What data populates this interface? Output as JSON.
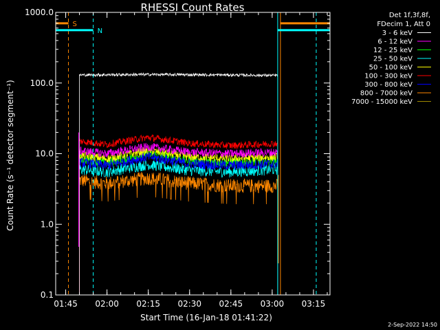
{
  "chart_data": {
    "type": "line",
    "title": "RHESSI Count Rates",
    "xlabel": "Start Time (16-Jan-18 01:41:22)",
    "ylabel": "Count Rate (s⁻¹ detector segment⁻¹)",
    "yscale": "log",
    "ylim": [
      0.1,
      1000.0
    ],
    "xlim": [
      "01:41:22",
      "03:21:00"
    ],
    "x_ticks": [
      "01:45",
      "02:00",
      "02:15",
      "02:30",
      "02:45",
      "03:00",
      "03:15"
    ],
    "y_ticks": [
      "0.1",
      "1.0",
      "10.0",
      "100.0",
      "1000.0"
    ],
    "grid": false,
    "legend_position": "top-right",
    "legend_header": [
      "Det 1f,3f,8f,",
      "FDecim 1, Att 0"
    ],
    "footer_date": "2-Sep-2022 14:50",
    "markers": [
      {
        "label": "S",
        "color": "#ff8800",
        "time": "01:46",
        "style": "dashed",
        "bar": {
          "start": "01:41:22",
          "end": "01:46",
          "level": 700
        }
      },
      {
        "label": "N",
        "color": "#00ffff",
        "time": "01:55",
        "style": "dashed",
        "bar": {
          "start": "01:41:22",
          "end": "01:55",
          "level": 560
        }
      },
      {
        "label": "",
        "color": "#ff8800",
        "time": "03:03",
        "style": "solid",
        "bar": {
          "start": "03:03",
          "end": "03:21",
          "level": 700
        }
      },
      {
        "label": "",
        "color": "#00ffff",
        "time": "03:02",
        "style": "solid",
        "bar": {
          "start": "03:02",
          "end": "03:21",
          "level": 560
        }
      },
      {
        "label": "",
        "color": "#00ffff",
        "time": "03:16",
        "style": "dashed"
      },
      {
        "label": "",
        "color": "#00ffff",
        "time": "01:41:22",
        "style": "solid"
      }
    ],
    "observation": {
      "start": "01:50",
      "end": "03:02"
    },
    "series": [
      {
        "name": "3 - 6 keV",
        "color": "#ffffff",
        "values": [
          {
            "t": "01:50",
            "v": 130
          },
          {
            "t": "02:15",
            "v": 132
          },
          {
            "t": "02:45",
            "v": 130
          },
          {
            "t": "03:02",
            "v": 128
          }
        ]
      },
      {
        "name": "6 - 12 keV",
        "color": "#ff00ff",
        "values": [
          {
            "t": "01:50",
            "v": 11
          },
          {
            "t": "02:00",
            "v": 10
          },
          {
            "t": "02:15",
            "v": 12.5
          },
          {
            "t": "02:30",
            "v": 10.5
          },
          {
            "t": "02:45",
            "v": 10
          },
          {
            "t": "03:02",
            "v": 10.5
          }
        ]
      },
      {
        "name": "12 - 25 keV",
        "color": "#00ff00",
        "values": [
          {
            "t": "01:50",
            "v": 8.5
          },
          {
            "t": "02:00",
            "v": 7.5
          },
          {
            "t": "02:15",
            "v": 10
          },
          {
            "t": "02:30",
            "v": 8
          },
          {
            "t": "02:45",
            "v": 7.5
          },
          {
            "t": "03:02",
            "v": 8
          }
        ]
      },
      {
        "name": "25 - 50 keV",
        "color": "#00ffff",
        "values": [
          {
            "t": "01:50",
            "v": 6
          },
          {
            "t": "02:00",
            "v": 5.5
          },
          {
            "t": "02:15",
            "v": 7
          },
          {
            "t": "02:30",
            "v": 5.8
          },
          {
            "t": "02:45",
            "v": 5.5
          },
          {
            "t": "03:02",
            "v": 6
          }
        ]
      },
      {
        "name": "50 - 100 keV",
        "color": "#ffff00",
        "values": [
          {
            "t": "01:50",
            "v": 9.5
          },
          {
            "t": "02:00",
            "v": 8.5
          },
          {
            "t": "02:15",
            "v": 11
          },
          {
            "t": "02:30",
            "v": 9
          },
          {
            "t": "02:45",
            "v": 8.5
          },
          {
            "t": "03:02",
            "v": 9
          }
        ]
      },
      {
        "name": "100 - 300 keV",
        "color": "#ff0000",
        "values": [
          {
            "t": "01:50",
            "v": 15
          },
          {
            "t": "02:00",
            "v": 13.5
          },
          {
            "t": "02:15",
            "v": 17
          },
          {
            "t": "02:30",
            "v": 14
          },
          {
            "t": "02:45",
            "v": 13
          },
          {
            "t": "03:02",
            "v": 14
          }
        ]
      },
      {
        "name": "300 - 800 keV",
        "color": "#0000ff",
        "values": [
          {
            "t": "01:50",
            "v": 7.5
          },
          {
            "t": "02:00",
            "v": 6.8
          },
          {
            "t": "02:15",
            "v": 9
          },
          {
            "t": "02:30",
            "v": 7.2
          },
          {
            "t": "02:45",
            "v": 6.8
          },
          {
            "t": "03:02",
            "v": 7.2
          }
        ]
      },
      {
        "name": "800 - 7000 keV",
        "color": "#ff8800",
        "values": [
          {
            "t": "01:50",
            "v": 4.2
          },
          {
            "t": "02:00",
            "v": 3.8
          },
          {
            "t": "02:15",
            "v": 4.5
          },
          {
            "t": "02:30",
            "v": 3.8
          },
          {
            "t": "02:45",
            "v": 3.5
          },
          {
            "t": "03:02",
            "v": 3.5
          }
        ]
      },
      {
        "name": "7000 - 15000 keV",
        "color": "#a08a00",
        "values": []
      }
    ]
  }
}
